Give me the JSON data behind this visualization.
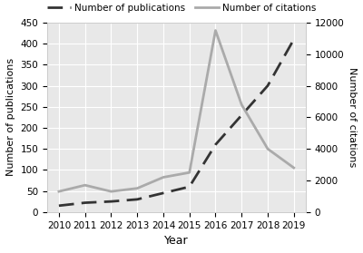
{
  "years": [
    2010,
    2011,
    2012,
    2013,
    2014,
    2015,
    2016,
    2017,
    2018,
    2019
  ],
  "publications": [
    15,
    22,
    25,
    30,
    45,
    60,
    160,
    230,
    300,
    410
  ],
  "citations": [
    1300,
    1700,
    1300,
    1500,
    2200,
    2500,
    11500,
    6800,
    4000,
    2800
  ],
  "pub_color": "#333333",
  "cit_color": "#aaaaaa",
  "plot_bg_color": "#e8e8e8",
  "fig_bg_color": "#ffffff",
  "ylabel_left": "Number of publications",
  "ylabel_right": "Number of citations",
  "xlabel": "Year",
  "legend_pub": "Number of publications",
  "legend_cit": "Number of citations",
  "ylim_left": [
    0,
    450
  ],
  "ylim_right": [
    0,
    12000
  ],
  "yticks_left": [
    0,
    50,
    100,
    150,
    200,
    250,
    300,
    350,
    400,
    450
  ],
  "yticks_right": [
    0,
    2000,
    4000,
    6000,
    8000,
    10000,
    12000
  ],
  "grid_color": "#ffffff",
  "pub_linewidth": 2.0,
  "cit_linewidth": 2.0,
  "legend_fontsize": 7.5,
  "axis_label_fontsize": 8,
  "tick_fontsize": 7.5,
  "xlabel_fontsize": 9
}
